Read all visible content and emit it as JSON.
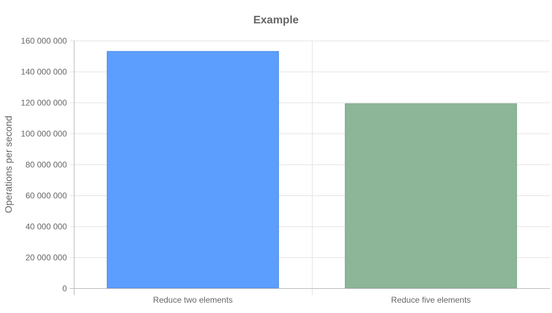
{
  "chart_data": {
    "type": "bar",
    "title": "Example",
    "xlabel": "",
    "ylabel": "Operations per second",
    "categories": [
      "Reduce two elements",
      "Reduce five elements"
    ],
    "values": [
      153000000,
      119200000
    ],
    "ylim": [
      0,
      160000000
    ],
    "yticks": [
      0,
      20000000,
      40000000,
      60000000,
      80000000,
      100000000,
      120000000,
      140000000,
      160000000
    ],
    "ytick_labels": [
      "0",
      "20 000 000",
      "40 000 000",
      "60 000 000",
      "80 000 000",
      "100 000 000",
      "120 000 000",
      "140 000 000",
      "160 000 000"
    ],
    "colors": [
      {
        "fill": "#5b9efd",
        "stroke": "#4a88e6"
      },
      {
        "fill": "#8db598",
        "stroke": "#7aa585"
      }
    ],
    "grid": true,
    "legend": "none"
  }
}
